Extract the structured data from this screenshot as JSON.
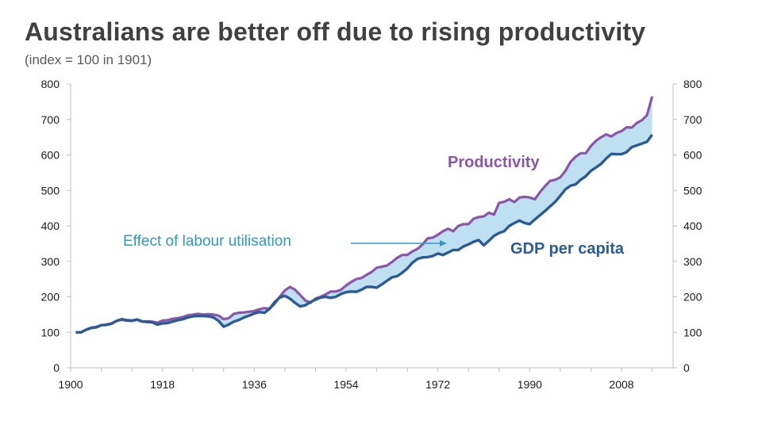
{
  "header": {
    "title": "Australians are better off due to rising productivity",
    "subtitle": "(index = 100 in 1901)"
  },
  "colors": {
    "productivity": "#8B55A8",
    "gdp": "#2B5A95",
    "fill": "#BEE0F0",
    "arrow": "#2E9AC0",
    "axis": "#BFBFBF"
  },
  "chart_data": {
    "type": "area",
    "title": "Australians are better off due to rising productivity",
    "subtitle": "(index = 100 in 1901)",
    "xlabel": "",
    "ylabel": "",
    "xlim": [
      1900,
      2014
    ],
    "ylim": [
      0,
      800
    ],
    "y_ticks": [
      0,
      100,
      200,
      300,
      400,
      500,
      600,
      700,
      800
    ],
    "y_tick_labels": [
      "0",
      "100",
      "200",
      "300",
      "400",
      "500",
      "600",
      "700",
      "800"
    ],
    "x_major_ticks": [
      1900,
      1918,
      1936,
      1954,
      1972,
      1990,
      2008
    ],
    "x_tick_labels": [
      "1900",
      "1918",
      "1936",
      "1954",
      "1972",
      "1990",
      "2008"
    ],
    "x_minor_tick_step": 6,
    "dual_y_axis": true,
    "grid": false,
    "legend": "none (inline labels)",
    "series": [
      {
        "name": "Productivity",
        "points": [
          [
            1901,
            100
          ],
          [
            1902,
            100
          ],
          [
            1903,
            107
          ],
          [
            1904,
            113
          ],
          [
            1905,
            115
          ],
          [
            1906,
            120
          ],
          [
            1907,
            122
          ],
          [
            1908,
            125
          ],
          [
            1909,
            132
          ],
          [
            1910,
            135
          ],
          [
            1911,
            133
          ],
          [
            1912,
            132
          ],
          [
            1913,
            135
          ],
          [
            1914,
            130
          ],
          [
            1915,
            131
          ],
          [
            1916,
            130
          ],
          [
            1917,
            127
          ],
          [
            1918,
            133
          ],
          [
            1919,
            134
          ],
          [
            1920,
            138
          ],
          [
            1921,
            140
          ],
          [
            1922,
            143
          ],
          [
            1923,
            148
          ],
          [
            1924,
            150
          ],
          [
            1925,
            152
          ],
          [
            1926,
            150
          ],
          [
            1927,
            151
          ],
          [
            1928,
            150
          ],
          [
            1929,
            147
          ],
          [
            1930,
            137
          ],
          [
            1931,
            140
          ],
          [
            1932,
            152
          ],
          [
            1933,
            155
          ],
          [
            1934,
            156
          ],
          [
            1935,
            158
          ],
          [
            1936,
            160
          ],
          [
            1937,
            165
          ],
          [
            1938,
            168
          ],
          [
            1939,
            167
          ],
          [
            1940,
            180
          ],
          [
            1941,
            200
          ],
          [
            1942,
            218
          ],
          [
            1943,
            228
          ],
          [
            1944,
            220
          ],
          [
            1945,
            205
          ],
          [
            1946,
            190
          ],
          [
            1947,
            183
          ],
          [
            1948,
            195
          ],
          [
            1949,
            200
          ],
          [
            1950,
            207
          ],
          [
            1951,
            215
          ],
          [
            1952,
            215
          ],
          [
            1953,
            220
          ],
          [
            1954,
            232
          ],
          [
            1955,
            242
          ],
          [
            1956,
            250
          ],
          [
            1957,
            253
          ],
          [
            1958,
            262
          ],
          [
            1959,
            270
          ],
          [
            1960,
            282
          ],
          [
            1961,
            285
          ],
          [
            1962,
            288
          ],
          [
            1963,
            298
          ],
          [
            1964,
            310
          ],
          [
            1965,
            318
          ],
          [
            1966,
            318
          ],
          [
            1967,
            328
          ],
          [
            1968,
            335
          ],
          [
            1969,
            348
          ],
          [
            1970,
            365
          ],
          [
            1971,
            367
          ],
          [
            1972,
            375
          ],
          [
            1973,
            385
          ],
          [
            1974,
            392
          ],
          [
            1975,
            385
          ],
          [
            1976,
            400
          ],
          [
            1977,
            405
          ],
          [
            1978,
            405
          ],
          [
            1979,
            420
          ],
          [
            1980,
            425
          ],
          [
            1981,
            427
          ],
          [
            1982,
            437
          ],
          [
            1983,
            432
          ],
          [
            1984,
            465
          ],
          [
            1985,
            468
          ],
          [
            1986,
            475
          ],
          [
            1987,
            467
          ],
          [
            1988,
            480
          ],
          [
            1989,
            482
          ],
          [
            1990,
            480
          ],
          [
            1991,
            475
          ],
          [
            1992,
            495
          ],
          [
            1993,
            512
          ],
          [
            1994,
            527
          ],
          [
            1995,
            530
          ],
          [
            1996,
            537
          ],
          [
            1997,
            555
          ],
          [
            1998,
            580
          ],
          [
            1999,
            595
          ],
          [
            2000,
            605
          ],
          [
            2001,
            605
          ],
          [
            2002,
            625
          ],
          [
            2003,
            640
          ],
          [
            2004,
            650
          ],
          [
            2005,
            658
          ],
          [
            2006,
            652
          ],
          [
            2007,
            662
          ],
          [
            2008,
            667
          ],
          [
            2009,
            678
          ],
          [
            2010,
            677
          ],
          [
            2011,
            690
          ],
          [
            2012,
            698
          ],
          [
            2013,
            712
          ],
          [
            2014,
            765
          ]
        ]
      },
      {
        "name": "GDP per capita",
        "points": [
          [
            1901,
            100
          ],
          [
            1902,
            100
          ],
          [
            1903,
            107
          ],
          [
            1904,
            112
          ],
          [
            1905,
            114
          ],
          [
            1906,
            120
          ],
          [
            1907,
            121
          ],
          [
            1908,
            124
          ],
          [
            1909,
            132
          ],
          [
            1910,
            137
          ],
          [
            1911,
            134
          ],
          [
            1912,
            133
          ],
          [
            1913,
            136
          ],
          [
            1914,
            131
          ],
          [
            1915,
            129
          ],
          [
            1916,
            128
          ],
          [
            1917,
            122
          ],
          [
            1918,
            125
          ],
          [
            1919,
            126
          ],
          [
            1920,
            130
          ],
          [
            1921,
            134
          ],
          [
            1922,
            137
          ],
          [
            1923,
            142
          ],
          [
            1924,
            145
          ],
          [
            1925,
            146
          ],
          [
            1926,
            146
          ],
          [
            1927,
            145
          ],
          [
            1928,
            142
          ],
          [
            1929,
            132
          ],
          [
            1930,
            116
          ],
          [
            1931,
            122
          ],
          [
            1932,
            130
          ],
          [
            1933,
            135
          ],
          [
            1934,
            142
          ],
          [
            1935,
            147
          ],
          [
            1936,
            153
          ],
          [
            1937,
            157
          ],
          [
            1938,
            155
          ],
          [
            1939,
            166
          ],
          [
            1940,
            185
          ],
          [
            1941,
            198
          ],
          [
            1942,
            203
          ],
          [
            1943,
            195
          ],
          [
            1944,
            183
          ],
          [
            1945,
            173
          ],
          [
            1946,
            176
          ],
          [
            1947,
            185
          ],
          [
            1948,
            192
          ],
          [
            1949,
            198
          ],
          [
            1950,
            200
          ],
          [
            1951,
            197
          ],
          [
            1952,
            200
          ],
          [
            1953,
            208
          ],
          [
            1954,
            213
          ],
          [
            1955,
            215
          ],
          [
            1956,
            214
          ],
          [
            1957,
            220
          ],
          [
            1958,
            228
          ],
          [
            1959,
            228
          ],
          [
            1960,
            226
          ],
          [
            1961,
            235
          ],
          [
            1962,
            245
          ],
          [
            1963,
            255
          ],
          [
            1964,
            258
          ],
          [
            1965,
            268
          ],
          [
            1966,
            280
          ],
          [
            1967,
            296
          ],
          [
            1968,
            307
          ],
          [
            1969,
            311
          ],
          [
            1970,
            312
          ],
          [
            1971,
            315
          ],
          [
            1972,
            322
          ],
          [
            1973,
            318
          ],
          [
            1974,
            325
          ],
          [
            1975,
            332
          ],
          [
            1976,
            332
          ],
          [
            1977,
            342
          ],
          [
            1978,
            348
          ],
          [
            1979,
            355
          ],
          [
            1980,
            360
          ],
          [
            1981,
            345
          ],
          [
            1982,
            358
          ],
          [
            1983,
            372
          ],
          [
            1984,
            380
          ],
          [
            1985,
            385
          ],
          [
            1986,
            400
          ],
          [
            1987,
            408
          ],
          [
            1988,
            415
          ],
          [
            1989,
            408
          ],
          [
            1990,
            405
          ],
          [
            1991,
            418
          ],
          [
            1992,
            430
          ],
          [
            1993,
            442
          ],
          [
            1994,
            455
          ],
          [
            1995,
            468
          ],
          [
            1996,
            485
          ],
          [
            1997,
            503
          ],
          [
            1998,
            513
          ],
          [
            1999,
            517
          ],
          [
            2000,
            530
          ],
          [
            2001,
            540
          ],
          [
            2002,
            555
          ],
          [
            2003,
            565
          ],
          [
            2004,
            575
          ],
          [
            2005,
            590
          ],
          [
            2006,
            603
          ],
          [
            2007,
            602
          ],
          [
            2008,
            602
          ],
          [
            2009,
            608
          ],
          [
            2010,
            622
          ],
          [
            2011,
            627
          ],
          [
            2012,
            632
          ],
          [
            2013,
            637
          ],
          [
            2014,
            657
          ]
        ]
      }
    ],
    "shaded_region": {
      "between": [
        "GDP per capita",
        "Productivity"
      ],
      "label": "Effect of labour utilisation"
    },
    "annotations": [
      {
        "text": "Productivity",
        "series": "Productivity"
      },
      {
        "text": "GDP per capita",
        "series": "GDP per capita"
      },
      {
        "text": "Effect of labour utilisation",
        "arrow": true,
        "points_to": "shaded_region"
      }
    ]
  }
}
